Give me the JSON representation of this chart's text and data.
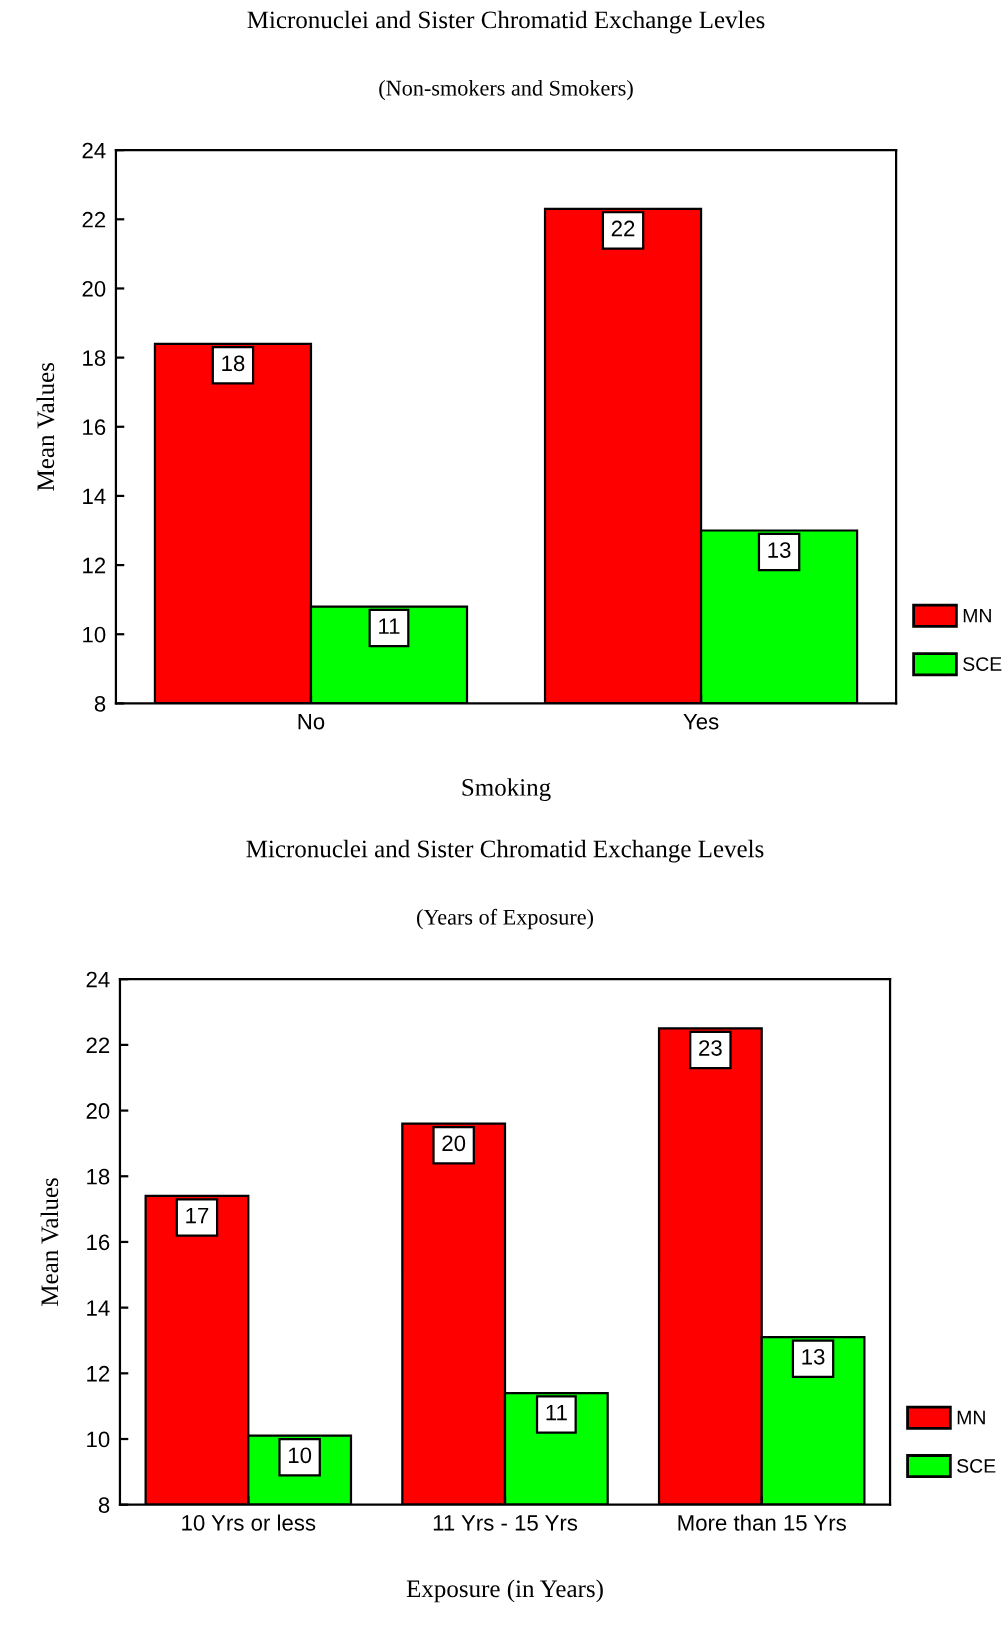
{
  "chart_data": [
    {
      "type": "bar",
      "title": "Micronuclei and Sister Chromatid Exchange Levles",
      "subtitle": "(Non-smokers and Smokers)",
      "xlabel": "Smoking",
      "ylabel": "Mean Values",
      "categories": [
        "No",
        "Yes"
      ],
      "series": [
        {
          "name": "MN",
          "color": "#ff0000",
          "values": [
            18.4,
            22.3
          ],
          "value_labels": [
            "18",
            "22"
          ]
        },
        {
          "name": "SCE",
          "color": "#00ff00",
          "values": [
            10.8,
            13.0
          ],
          "value_labels": [
            "11",
            "13"
          ]
        }
      ],
      "ylim": [
        8,
        24
      ],
      "yticks": [
        8,
        10,
        12,
        14,
        16,
        18,
        20,
        22,
        24
      ],
      "grid": false,
      "legend": "right"
    },
    {
      "type": "bar",
      "title": "Micronuclei and Sister Chromatid Exchange Levels",
      "subtitle": "(Years of Exposure)",
      "xlabel": "Exposure (in Years)",
      "ylabel": "Mean Values",
      "categories": [
        "10 Yrs or less",
        "11 Yrs - 15 Yrs",
        "More than 15 Yrs"
      ],
      "series": [
        {
          "name": "MN",
          "color": "#ff0000",
          "values": [
            17.4,
            19.6,
            22.5
          ],
          "value_labels": [
            "17",
            "20",
            "23"
          ]
        },
        {
          "name": "SCE",
          "color": "#00ff00",
          "values": [
            10.1,
            11.4,
            13.1
          ],
          "value_labels": [
            "10",
            "11",
            "13"
          ]
        }
      ],
      "ylim": [
        8,
        24
      ],
      "yticks": [
        8,
        10,
        12,
        14,
        16,
        18,
        20,
        22,
        24
      ],
      "grid": false,
      "legend": "right"
    }
  ]
}
